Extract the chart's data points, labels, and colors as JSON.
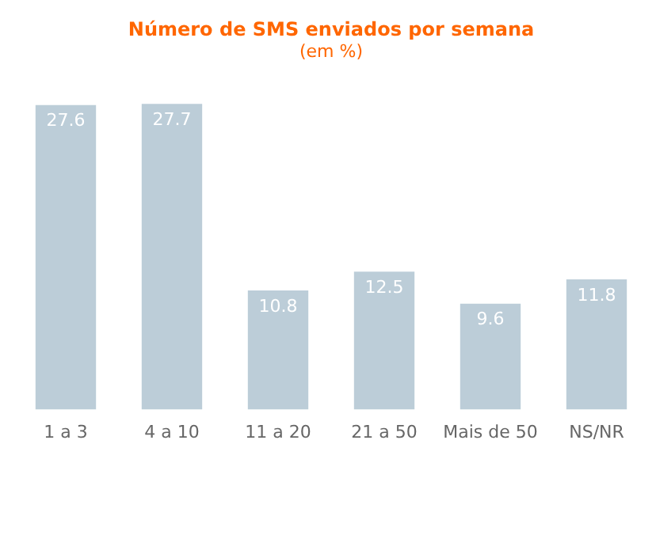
{
  "chart_data": {
    "type": "bar",
    "title": "Número de SMS enviados por semana",
    "subtitle": "(em %)",
    "categories": [
      "1 a 3",
      "4 a 10",
      "11 a 20",
      "21 a 50",
      "Mais de 50",
      "NS/NR"
    ],
    "values": [
      27.6,
      27.7,
      10.8,
      12.5,
      9.6,
      11.8
    ],
    "color": "#bccdd8",
    "data_labels": true,
    "grid": false,
    "legend": false
  }
}
